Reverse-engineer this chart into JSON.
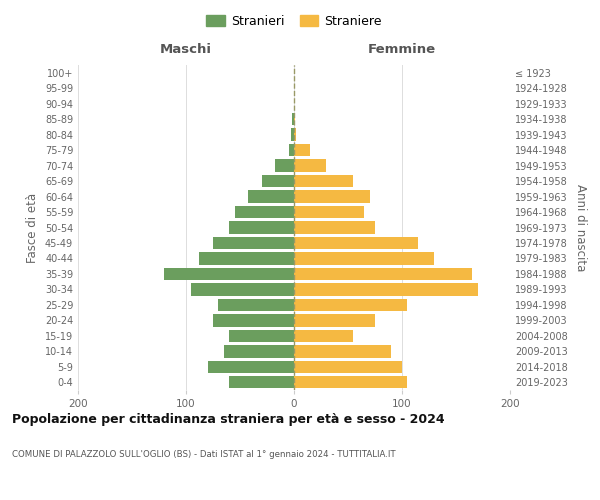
{
  "age_groups": [
    "0-4",
    "5-9",
    "10-14",
    "15-19",
    "20-24",
    "25-29",
    "30-34",
    "35-39",
    "40-44",
    "45-49",
    "50-54",
    "55-59",
    "60-64",
    "65-69",
    "70-74",
    "75-79",
    "80-84",
    "85-89",
    "90-94",
    "95-99",
    "100+"
  ],
  "birth_years": [
    "2019-2023",
    "2014-2018",
    "2009-2013",
    "2004-2008",
    "1999-2003",
    "1994-1998",
    "1989-1993",
    "1984-1988",
    "1979-1983",
    "1974-1978",
    "1969-1973",
    "1964-1968",
    "1959-1963",
    "1954-1958",
    "1949-1953",
    "1944-1948",
    "1939-1943",
    "1934-1938",
    "1929-1933",
    "1924-1928",
    "≤ 1923"
  ],
  "maschi": [
    60,
    80,
    65,
    60,
    75,
    70,
    95,
    120,
    88,
    75,
    60,
    55,
    43,
    30,
    18,
    5,
    3,
    2,
    0,
    0,
    0
  ],
  "femmine": [
    105,
    100,
    90,
    55,
    75,
    105,
    170,
    165,
    130,
    115,
    75,
    65,
    70,
    55,
    30,
    15,
    2,
    1,
    0,
    0,
    0
  ],
  "color_maschi": "#6b9e5e",
  "color_femmine": "#f5b942",
  "title": "Popolazione per cittadinanza straniera per età e sesso - 2024",
  "subtitle": "COMUNE DI PALAZZOLO SULL'OGLIO (BS) - Dati ISTAT al 1° gennaio 2024 - TUTTITALIA.IT",
  "xlabel_left": "Maschi",
  "xlabel_right": "Femmine",
  "ylabel_left": "Fasce di età",
  "ylabel_right": "Anni di nascita",
  "legend_maschi": "Stranieri",
  "legend_femmine": "Straniere",
  "xlim": 200,
  "background_color": "#ffffff",
  "grid_color": "#dddddd"
}
